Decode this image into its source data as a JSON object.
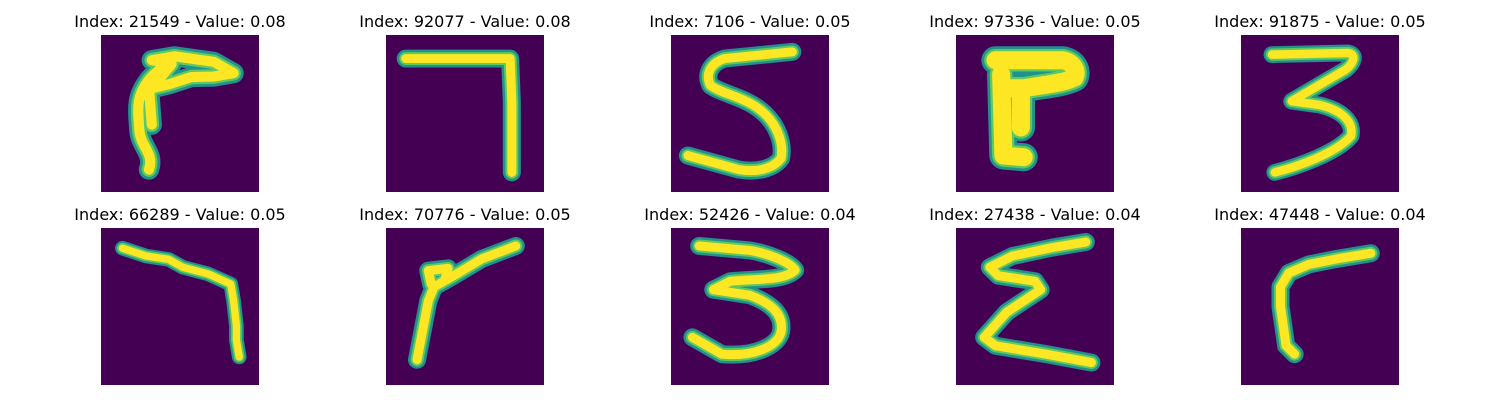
{
  "chart_data": {
    "type": "image_grid",
    "colormap": "viridis",
    "colors": {
      "background": "#440154",
      "stroke_outer": "#21918c",
      "stroke_mid": "#5ec962",
      "stroke_inner": "#fde725"
    },
    "grid": {
      "rows": 2,
      "cols": 5
    },
    "panels": [
      {
        "title": "Index: 21549 - Value: 0.08",
        "index": 21549,
        "value": 0.08
      },
      {
        "title": "Index: 92077 - Value: 0.08",
        "index": 92077,
        "value": 0.08
      },
      {
        "title": "Index: 7106 - Value: 0.05",
        "index": 7106,
        "value": 0.05
      },
      {
        "title": "Index: 97336 - Value: 0.05",
        "index": 97336,
        "value": 0.05
      },
      {
        "title": "Index: 91875 - Value: 0.05",
        "index": 91875,
        "value": 0.05
      },
      {
        "title": "Index: 66289 - Value: 0.05",
        "index": 66289,
        "value": 0.05
      },
      {
        "title": "Index: 70776 - Value: 0.05",
        "index": 70776,
        "value": 0.05
      },
      {
        "title": "Index: 52426 - Value: 0.04",
        "index": 52426,
        "value": 0.04
      },
      {
        "title": "Index: 27438 - Value: 0.04",
        "index": 27438,
        "value": 0.04
      },
      {
        "title": "Index: 47448 - Value: 0.04",
        "index": 47448,
        "value": 0.04
      }
    ]
  }
}
